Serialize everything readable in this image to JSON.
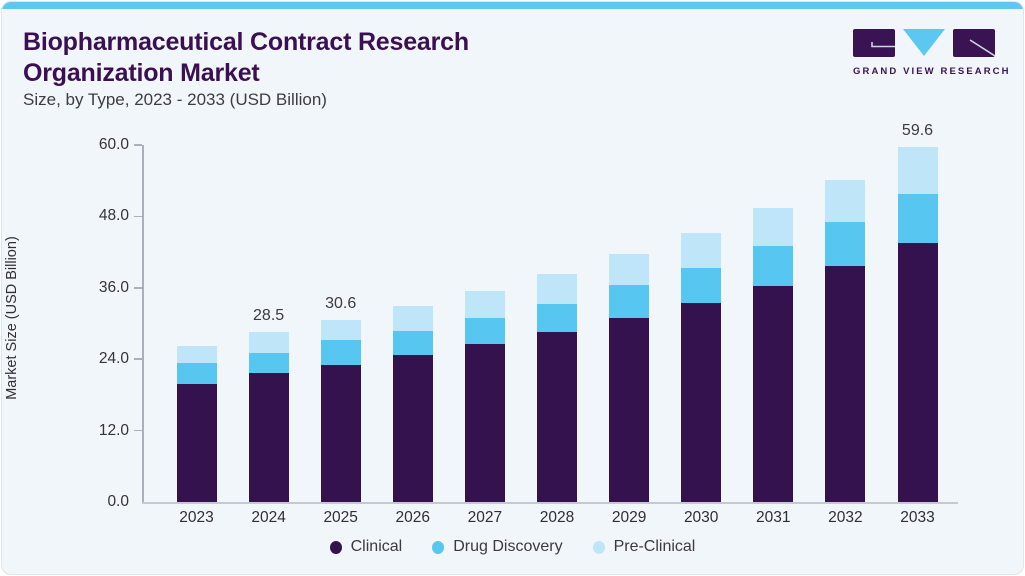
{
  "header": {
    "title_line1": "Biopharmaceutical Contract Research",
    "title_line2": "Organization Market",
    "subtitle": "Size, by Type, 2023 - 2033 (USD Billion)"
  },
  "logo": {
    "text": "GRAND VIEW RESEARCH",
    "mark_purple": "#3a1353",
    "mark_blue": "#5cc8f1"
  },
  "colors": {
    "card_background": "#f1f6fa",
    "top_accent": "#5cc8f1",
    "title_text": "#3b1053",
    "axis_spine": "#a9b0ba",
    "baseline": "#c3cad2",
    "label_text": "#3a3a40"
  },
  "chart_data": {
    "type": "bar",
    "stacked": true,
    "title": "Biopharmaceutical Contract Research Organization Market",
    "subtitle": "Size, by Type, 2023 - 2033 (USD Billion)",
    "ylabel": "Market Size (USD Billion)",
    "xlabel": "",
    "ylim": [
      0,
      60
    ],
    "ytick_step": 12,
    "yticks": [
      "0.0",
      "12.0",
      "24.0",
      "36.0",
      "48.0",
      "60.0"
    ],
    "grid": false,
    "legend_position": "bottom",
    "categories": [
      "2023",
      "2024",
      "2025",
      "2026",
      "2027",
      "2028",
      "2029",
      "2030",
      "2031",
      "2032",
      "2033"
    ],
    "series": [
      {
        "name": "Clinical",
        "color": "#34124e",
        "values": [
          19.9,
          21.6,
          23.0,
          24.7,
          26.5,
          28.5,
          30.9,
          33.4,
          36.3,
          39.6,
          43.6
        ]
      },
      {
        "name": "Drug Discovery",
        "color": "#57c7f2",
        "values": [
          3.4,
          3.5,
          4.3,
          4.1,
          4.5,
          4.8,
          5.5,
          6.0,
          6.7,
          7.4,
          8.1
        ]
      },
      {
        "name": "Pre-Clinical",
        "color": "#bfe6f8",
        "values": [
          3.0,
          3.4,
          3.3,
          4.1,
          4.5,
          5.0,
          5.2,
          5.8,
          6.4,
          7.1,
          7.9
        ]
      }
    ],
    "totals": [
      26.3,
      28.5,
      30.6,
      32.9,
      35.5,
      38.3,
      41.6,
      45.2,
      49.4,
      54.1,
      59.6
    ],
    "total_labels": [
      "",
      "28.5",
      "30.6",
      "",
      "",
      "",
      "",
      "",
      "",
      "",
      "59.6"
    ]
  }
}
